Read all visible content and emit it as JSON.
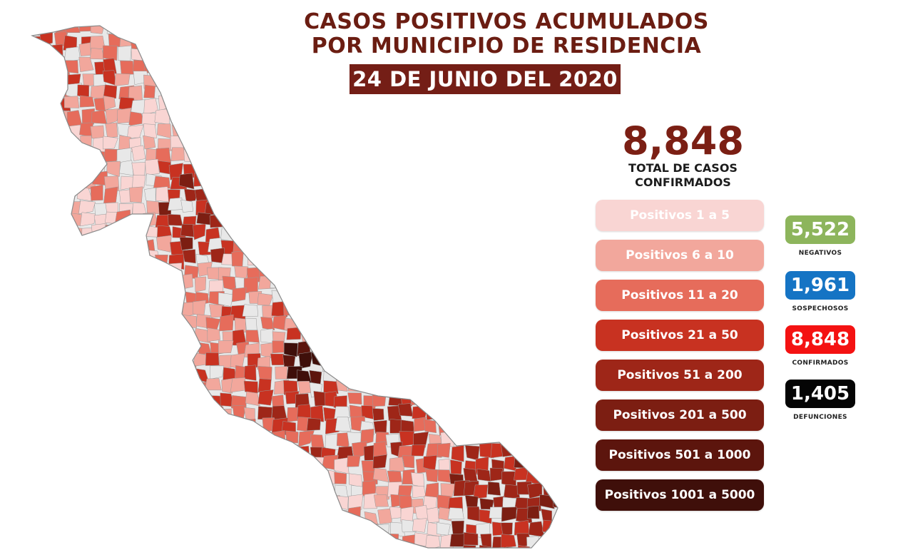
{
  "title": {
    "line1": "CASOS POSITIVOS ACUMULADOS",
    "line2": "POR MUNICIPIO DE RESIDENCIA",
    "date": "24 DE JUNIO DEL 2020"
  },
  "total": {
    "value": "8,848",
    "label_line1": "TOTAL DE CASOS",
    "label_line2": "CONFIRMADOS"
  },
  "legend": [
    {
      "label": "Positivos 1 a 5",
      "color": "#f9d5d3"
    },
    {
      "label": "Positivos 6 a 10",
      "color": "#f2a79c"
    },
    {
      "label": "Positivos 11 a 20",
      "color": "#e66c5b"
    },
    {
      "label": "Positivos 21 a 50",
      "color": "#c83221"
    },
    {
      "label": "Positivos 51 a 200",
      "color": "#9e2618"
    },
    {
      "label": "Positivos 201 a 500",
      "color": "#7c1e12"
    },
    {
      "label": "Positivos 501 a 1000",
      "color": "#5c150d"
    },
    {
      "label": "Positivos 1001 a 5000",
      "color": "#3f0f0a"
    }
  ],
  "stats": [
    {
      "value": "5,522",
      "label": "NEGATIVOS",
      "color": "#8db55c"
    },
    {
      "value": "1,961",
      "label": "SOSPECHOSOS",
      "color": "#1574c4"
    },
    {
      "value": "8,848",
      "label": "CONFIRMADOS",
      "color": "#f41212"
    },
    {
      "value": "1,405",
      "label": "DEFUNCIONES",
      "color": "#050505"
    }
  ],
  "map": {
    "no_data_color": "#e8e8e8",
    "border_color": "#9a9a9a"
  }
}
